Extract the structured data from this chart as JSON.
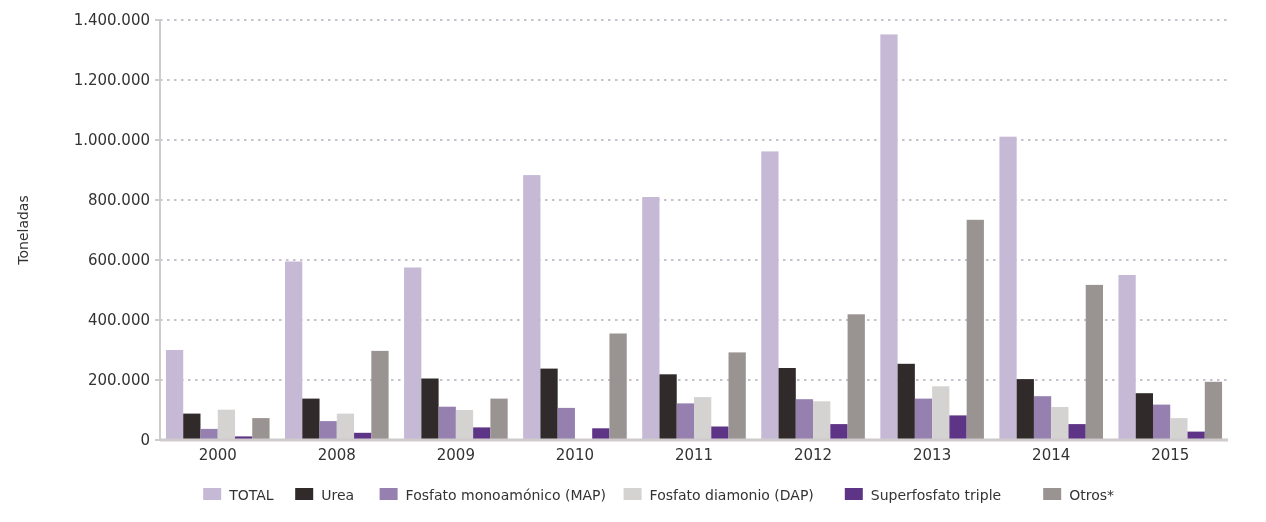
{
  "chart_data": {
    "type": "bar",
    "ylabel": "Toneladas",
    "categories": [
      "2000",
      "2008",
      "2009",
      "2010",
      "2011",
      "2012",
      "2013",
      "2014",
      "2015"
    ],
    "series": [
      {
        "name": "TOTAL",
        "color": "#c5b9d6",
        "values": [
          300000,
          595000,
          575000,
          883000,
          810000,
          962000,
          1352000,
          1011000,
          550000
        ]
      },
      {
        "name": "Urea",
        "color": "#302b2a",
        "values": [
          88000,
          138000,
          205000,
          238000,
          219000,
          240000,
          254000,
          203000,
          156000
        ]
      },
      {
        "name": "Fosfato monoamónico (MAP)",
        "color": "#9580b0",
        "values": [
          37000,
          63000,
          111000,
          107000,
          122000,
          136000,
          138000,
          146000,
          118000
        ]
      },
      {
        "name": "Fosfato diamonio (DAP)",
        "color": "#d5d2d2",
        "values": [
          101000,
          88000,
          100000,
          0,
          143000,
          129000,
          179000,
          110000,
          73000
        ]
      },
      {
        "name": "Superfosfato triple",
        "color": "#5e3586",
        "values": [
          12000,
          24000,
          42000,
          39000,
          45000,
          53000,
          82000,
          53000,
          28000
        ]
      },
      {
        "name": "Otros*",
        "color": "#999392",
        "values": [
          73000,
          297000,
          138000,
          355000,
          292000,
          419000,
          734000,
          517000,
          194000
        ]
      }
    ],
    "ylim": [
      0,
      1400000
    ],
    "yticks": [
      0,
      {
        "value": 200000,
        "label": "200.000"
      },
      {
        "value": 400000,
        "label": "400.000"
      },
      {
        "value": 600000,
        "label": "600.000"
      },
      {
        "value": 800000,
        "label": "800.000"
      },
      {
        "value": 1000000,
        "label": "1.000.000"
      },
      {
        "value": 1200000,
        "label": "1.200.000"
      },
      {
        "value": 1400000,
        "label": "1.400.000"
      }
    ],
    "grid": "y",
    "legend": "bottom"
  }
}
